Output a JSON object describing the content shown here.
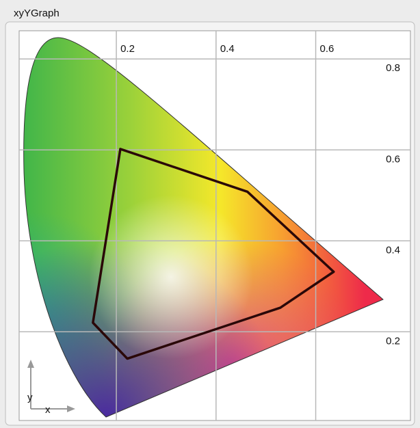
{
  "chart_data": {
    "type": "line",
    "title": "xyYGraph",
    "xlabel": "x",
    "ylabel": "y",
    "x": [
      0.208,
      0.463,
      0.636,
      0.529,
      0.222,
      0.153
    ],
    "values": [
      0.602,
      0.508,
      0.332,
      0.253,
      0.141,
      0.22
    ],
    "closed": true,
    "color": "#2a0808",
    "xlim": [
      0.005,
      0.79
    ],
    "ylim": [
      0.005,
      0.862
    ],
    "xticks": [
      0.2,
      0.4,
      0.6
    ],
    "yticks": [
      0.2,
      0.4,
      0.6,
      0.8
    ],
    "grid": true
  }
}
